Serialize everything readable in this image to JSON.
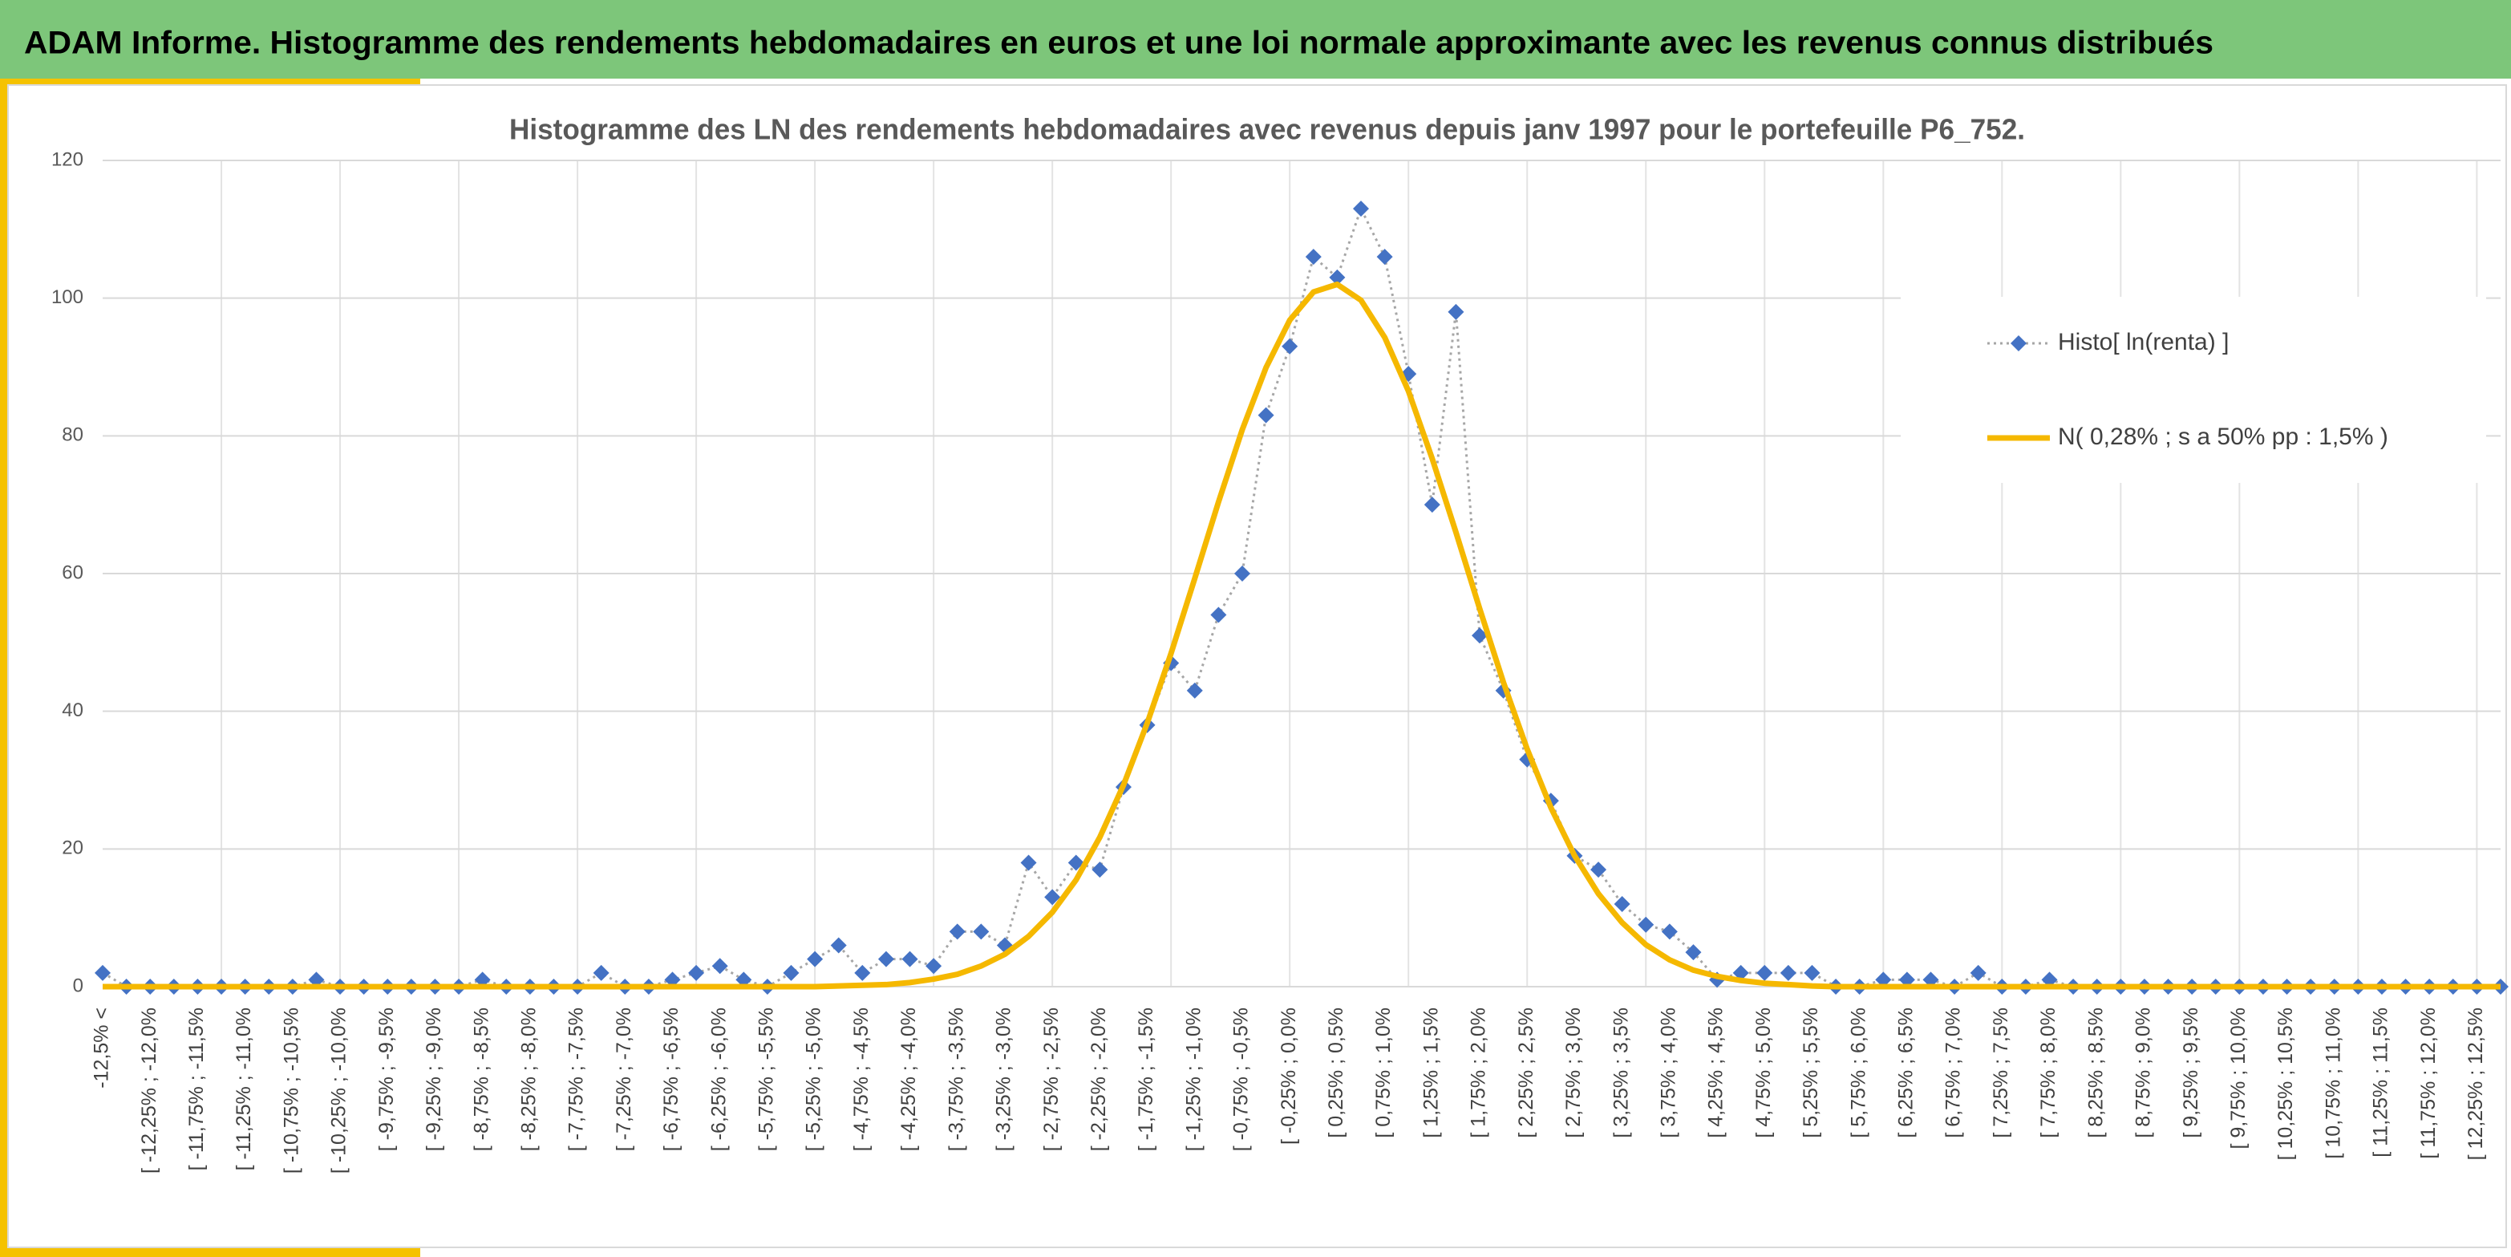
{
  "header": {
    "title": "ADAM Informe. Histogramme des rendements hebdomadaires en euros et une loi normale approximante avec les revenus connus distribués"
  },
  "chart_data": {
    "type": "line",
    "title": "Histogramme des LN des rendements hebdomadaires avec revenus depuis janv 1997 pour le portefeuille P6_752.",
    "categories": [
      "-12,5% <",
      null,
      "[ -12,25% ; -12,0%",
      null,
      "[ -11,75% ; -11,5%",
      null,
      "[ -11,25% ; -11,0%",
      null,
      "[ -10,75% ; -10,5%",
      null,
      "[ -10,25% ; -10,0%",
      null,
      "[ -9,75% ; -9,5%",
      null,
      "[ -9,25% ; -9,0%",
      null,
      "[ -8,75% ; -8,5%",
      null,
      "[ -8,25% ; -8,0%",
      null,
      "[ -7,75% ; -7,5%",
      null,
      "[ -7,25% ; -7,0%",
      null,
      "[ -6,75% ; -6,5%",
      null,
      "[ -6,25% ; -6,0%",
      null,
      "[ -5,75% ; -5,5%",
      null,
      "[ -5,25% ; -5,0%",
      null,
      "[ -4,75% ; -4,5%",
      null,
      "[ -4,25% ; -4,0%",
      null,
      "[ -3,75% ; -3,5%",
      null,
      "[ -3,25% ; -3,0%",
      null,
      "[ -2,75% ; -2,5%",
      null,
      "[ -2,25% ; -2,0%",
      null,
      "[ -1,75% ; -1,5%",
      null,
      "[ -1,25% ; -1,0%",
      null,
      "[ -0,75% ; -0,5%",
      null,
      "[ -0,25% ; 0,0%",
      null,
      "[ 0,25% ; 0,5%",
      null,
      "[ 0,75% ; 1,0%",
      null,
      "[ 1,25% ; 1,5%",
      null,
      "[ 1,75% ; 2,0%",
      null,
      "[ 2,25% ; 2,5%",
      null,
      "[ 2,75% ; 3,0%",
      null,
      "[ 3,25% ; 3,5%",
      null,
      "[ 3,75% ; 4,0%",
      null,
      "[ 4,25% ; 4,5%",
      null,
      "[ 4,75% ; 5,0%",
      null,
      "[ 5,25% ; 5,5%",
      null,
      "[ 5,75% ; 6,0%",
      null,
      "[ 6,25% ; 6,5%",
      null,
      "[ 6,75% ; 7,0%",
      null,
      "[ 7,25% ; 7,5%",
      null,
      "[ 7,75% ; 8,0%",
      null,
      "[ 8,25% ; 8,5%",
      null,
      "[ 8,75% ; 9,0%",
      null,
      "[ 9,25% ; 9,5%",
      null,
      "[ 9,75% ; 10,0%",
      null,
      "[ 10,25% ; 10,5%",
      null,
      "[ 10,75% ; 11,0%",
      null,
      "[ 11,25% ; 11,5%",
      null,
      "[ 11,75% ; 12,0%",
      null,
      "[ 12,25% ; 12,5%",
      null
    ],
    "series": [
      {
        "name": "Histo[ ln(renta) ]",
        "color": "#4472c4",
        "line_color": "#a6a6a6",
        "marker": "diamond",
        "dashed": true,
        "values": [
          2,
          0,
          0,
          0,
          0,
          0,
          0,
          0,
          0,
          1,
          0,
          0,
          0,
          0,
          0,
          0,
          1,
          0,
          0,
          0,
          0,
          2,
          0,
          0,
          1,
          2,
          3,
          1,
          0,
          2,
          4,
          6,
          2,
          4,
          4,
          3,
          8,
          8,
          6,
          18,
          13,
          18,
          17,
          29,
          38,
          47,
          43,
          54,
          60,
          83,
          93,
          106,
          103,
          113,
          106,
          89,
          70,
          98,
          51,
          43,
          33,
          27,
          19,
          17,
          12,
          9,
          8,
          5,
          1,
          2,
          2,
          2,
          2,
          0,
          0,
          1,
          1,
          1,
          0,
          2,
          0,
          0,
          1,
          0,
          0,
          0,
          0,
          0,
          0,
          0,
          0,
          0,
          0,
          0,
          0,
          0,
          0,
          0,
          0,
          0,
          0,
          0
        ]
      },
      {
        "name": "N( 0,28% ; s a 50% pp : 1,5% )",
        "color": "#f5b800",
        "line_color": "#f5b800",
        "marker": "none",
        "dashed": false,
        "values": [
          0,
          0,
          0,
          0,
          0,
          0,
          0,
          0,
          0,
          0,
          0,
          0,
          0,
          0,
          0,
          0,
          0,
          0,
          0,
          0,
          0,
          0,
          0,
          0,
          0,
          0,
          0,
          0,
          0,
          0,
          0,
          0.1,
          0.2,
          0.3,
          0.6,
          1.1,
          1.8,
          3.0,
          4.7,
          7.3,
          10.8,
          15.5,
          21.7,
          29.3,
          38.3,
          48.4,
          59.3,
          70.4,
          80.9,
          89.9,
          96.8,
          100.9,
          102,
          99.7,
          94.3,
          86.5,
          76.7,
          66.0,
          54.9,
          44.2,
          34.5,
          26.0,
          19.0,
          13.5,
          9.3,
          6.1,
          3.9,
          2.4,
          1.5,
          0.9,
          0.5,
          0.3,
          0.1,
          0,
          0,
          0,
          0,
          0,
          0,
          0,
          0,
          0,
          0,
          0,
          0,
          0,
          0,
          0,
          0,
          0,
          0,
          0,
          0,
          0,
          0,
          0,
          0,
          0,
          0,
          0,
          0,
          0
        ]
      }
    ],
    "ylim": [
      0,
      120
    ],
    "yticks": [
      0,
      20,
      40,
      60,
      80,
      100,
      120
    ],
    "grid": true,
    "legend": "upper right"
  }
}
